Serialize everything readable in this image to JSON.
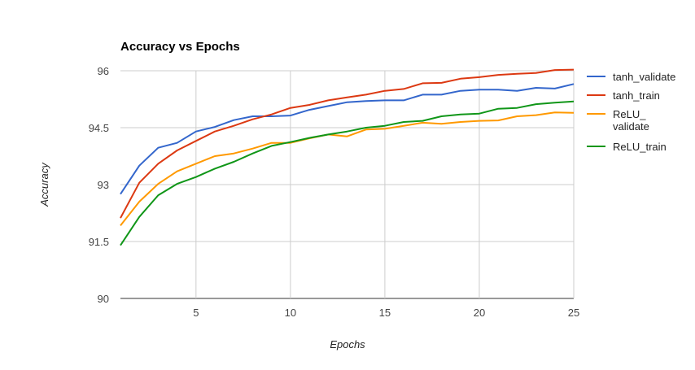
{
  "chart_data": {
    "type": "line",
    "title": "Accuracy vs Epochs",
    "xlabel": "Epochs",
    "ylabel": "Accuracy",
    "xlim": [
      1,
      25
    ],
    "ylim": [
      90,
      96
    ],
    "x_ticks": [
      5,
      10,
      15,
      20,
      25
    ],
    "y_ticks": [
      90,
      91.5,
      93,
      94.5,
      96
    ],
    "grid": true,
    "legend_position": "right",
    "x": [
      1,
      2,
      3,
      4,
      5,
      6,
      7,
      8,
      9,
      10,
      11,
      12,
      13,
      14,
      15,
      16,
      17,
      18,
      19,
      20,
      21,
      22,
      23,
      24,
      25
    ],
    "series": [
      {
        "name": "tanh_validate",
        "color": "#3366cc",
        "values": [
          92.75,
          93.5,
          93.97,
          94.1,
          94.4,
          94.52,
          94.7,
          94.8,
          94.8,
          94.82,
          94.97,
          95.07,
          95.17,
          95.2,
          95.22,
          95.22,
          95.37,
          95.37,
          95.47,
          95.5,
          95.5,
          95.47,
          95.55,
          95.53,
          95.65
        ]
      },
      {
        "name": "tanh_train",
        "color": "#dc3912",
        "values": [
          92.12,
          93.05,
          93.55,
          93.9,
          94.15,
          94.4,
          94.55,
          94.72,
          94.85,
          95.02,
          95.1,
          95.22,
          95.3,
          95.37,
          95.47,
          95.52,
          95.67,
          95.68,
          95.79,
          95.83,
          95.89,
          95.92,
          95.94,
          96.02,
          96.03
        ]
      },
      {
        "name": "ReLU_validate",
        "legend_lines": [
          "ReLU_",
          "validate"
        ],
        "color": "#ff9900",
        "values": [
          91.92,
          92.55,
          93.02,
          93.35,
          93.55,
          93.75,
          93.82,
          93.95,
          94.1,
          94.1,
          94.22,
          94.32,
          94.27,
          94.45,
          94.47,
          94.55,
          94.63,
          94.6,
          94.65,
          94.68,
          94.69,
          94.8,
          94.83,
          94.9,
          94.89
        ]
      },
      {
        "name": "ReLU_train",
        "color": "#109618",
        "values": [
          91.4,
          92.15,
          92.72,
          93.02,
          93.2,
          93.42,
          93.6,
          93.82,
          94.02,
          94.12,
          94.23,
          94.32,
          94.4,
          94.5,
          94.55,
          94.65,
          94.68,
          94.8,
          94.85,
          94.87,
          95.0,
          95.02,
          95.12,
          95.16,
          95.19
        ]
      }
    ]
  }
}
